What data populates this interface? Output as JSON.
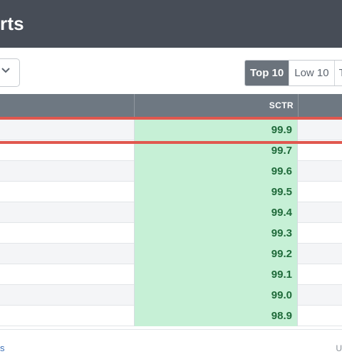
{
  "header": {
    "title": "rts"
  },
  "toolbar": {
    "dropdown_icon": "chevron-down-icon",
    "buttons": [
      {
        "label": "Top 10",
        "active": true
      },
      {
        "label": "Low 10",
        "active": false
      },
      {
        "label": "T",
        "active": false
      }
    ]
  },
  "table": {
    "columns": {
      "sctr": "SCTR"
    },
    "rows": [
      {
        "sctr": "99.9"
      },
      {
        "sctr": "99.7"
      },
      {
        "sctr": "99.6"
      },
      {
        "sctr": "99.5"
      },
      {
        "sctr": "99.4"
      },
      {
        "sctr": "99.3"
      },
      {
        "sctr": "99.2"
      },
      {
        "sctr": "99.1"
      },
      {
        "sctr": "99.0"
      },
      {
        "sctr": "98.9"
      }
    ]
  },
  "footer": {
    "left": "s",
    "right": "U"
  },
  "colors": {
    "header_bg": "#474d57",
    "highlight": "#e0584f",
    "sctr_cell_bg": "#c6f0d6",
    "sctr_value": "#1f6a3a"
  }
}
